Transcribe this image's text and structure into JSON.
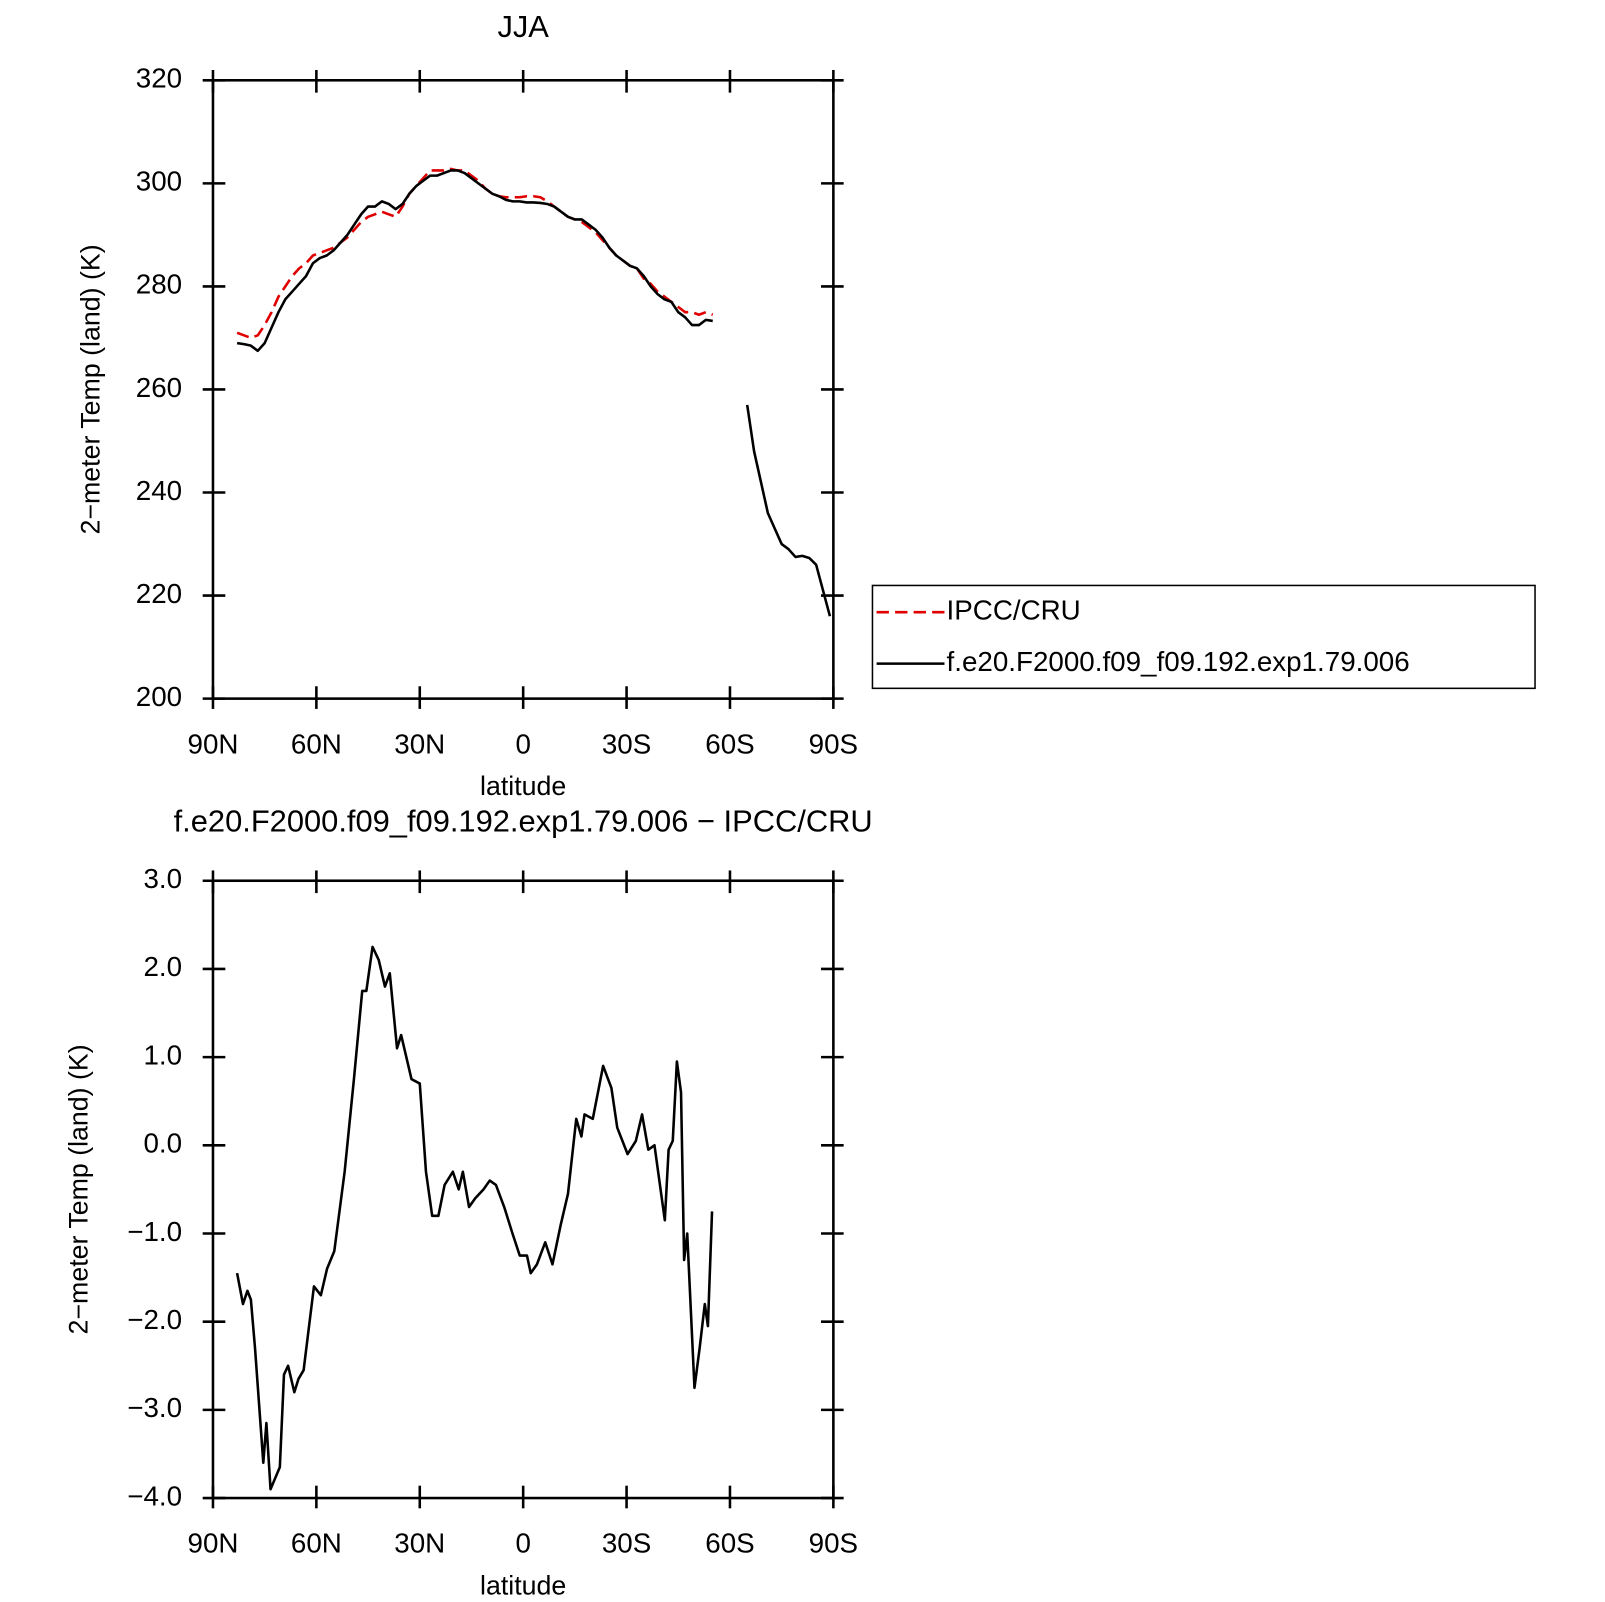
{
  "chart_data": [
    {
      "type": "line",
      "title": "JJA",
      "xlabel": "latitude",
      "ylabel": "2−meter Temp (land) (K)",
      "xlim": [
        90,
        -90
      ],
      "xticks": [
        {
          "value": 90,
          "label": "90N"
        },
        {
          "value": 60,
          "label": "60N"
        },
        {
          "value": 30,
          "label": "30N"
        },
        0,
        {
          "value": -30,
          "label": "30S"
        },
        {
          "value": -60,
          "label": "60S"
        },
        {
          "value": -90,
          "label": "90S"
        }
      ],
      "ylim": [
        200,
        320
      ],
      "yticks": [
        200,
        220,
        240,
        260,
        280,
        300,
        320
      ],
      "legend": "right",
      "x": [
        83,
        81,
        79,
        77,
        75,
        73,
        71,
        69,
        67,
        65,
        63,
        61,
        59,
        57,
        55,
        53,
        51,
        49,
        47,
        45,
        43,
        41,
        39,
        37,
        35,
        33,
        31,
        29,
        27,
        25,
        23,
        21,
        19,
        17,
        15,
        13,
        11,
        9,
        7,
        5,
        3,
        1,
        -1,
        -3,
        -5,
        -7,
        -9,
        -11,
        -13,
        -15,
        -17,
        -19,
        -21,
        -23,
        -25,
        -27,
        -29,
        -31,
        -33,
        -35,
        -37,
        -39,
        -41,
        -43,
        -45,
        -47,
        -49,
        -51,
        -53,
        -55,
        -57,
        -59,
        -61,
        -63,
        -65,
        -67,
        -69,
        -71,
        -73,
        -75,
        -77,
        -79,
        -81,
        -83,
        -85,
        -87,
        -89
      ],
      "series": [
        {
          "name": "IPCC/CRU",
          "color": "#e00000",
          "style": "dashed",
          "values": [
            271,
            270.5,
            270,
            270.5,
            272.5,
            275,
            278,
            280,
            282,
            283.5,
            284.5,
            286,
            286.5,
            287,
            287.5,
            288.5,
            289.5,
            291,
            292.5,
            293.5,
            294,
            294.5,
            294,
            293.5,
            295.5,
            298,
            299.5,
            301,
            302.5,
            302.5,
            302.5,
            302.8,
            302.5,
            302.5,
            301.5,
            300.5,
            299,
            298,
            297.5,
            297.3,
            297.3,
            297.3,
            297.5,
            297.5,
            297.3,
            296.5,
            295.5,
            294.5,
            293.5,
            293,
            292.5,
            291.5,
            290.5,
            289,
            287.5,
            286,
            285,
            284,
            283.5,
            281.5,
            280.5,
            279,
            278,
            277,
            276,
            275,
            275,
            274.5,
            275,
            274.5,
            null,
            null,
            null,
            null,
            null,
            null,
            null,
            null,
            null,
            null,
            null,
            null,
            null,
            null,
            null,
            null,
            null
          ]
        },
        {
          "name": "f.e20.F2000.f09_f09.192.exp1.79.006",
          "color": "#000000",
          "style": "solid",
          "values": [
            269,
            268.8,
            268.5,
            267.5,
            269,
            272,
            275,
            277.5,
            279,
            280.5,
            282,
            284.5,
            285.5,
            286,
            287,
            288.5,
            290,
            292,
            294,
            295.5,
            295.5,
            296.5,
            296,
            295,
            296,
            298,
            299.5,
            300.5,
            301.5,
            301.5,
            302,
            302.5,
            302.5,
            302,
            301,
            300,
            299,
            298,
            297.5,
            296.8,
            296.5,
            296.5,
            296.3,
            296.3,
            296.2,
            296,
            295.5,
            294.5,
            293.5,
            293,
            293,
            292,
            291,
            289.5,
            287.5,
            286,
            285,
            284,
            283.5,
            282,
            280,
            278.5,
            277.5,
            277,
            275,
            274,
            272.5,
            272.5,
            273.5,
            273.3,
            null,
            null,
            null,
            null,
            257,
            248,
            242,
            236,
            233,
            230,
            229,
            227.5,
            227.7,
            227.3,
            226,
            221,
            216
          ]
        }
      ]
    },
    {
      "type": "line",
      "title": "f.e20.F2000.f09_f09.192.exp1.79.006 − IPCC/CRU",
      "xlabel": "latitude",
      "ylabel": "2−meter Temp (land) (K)",
      "xlim": [
        90,
        -90
      ],
      "xticks": [
        {
          "value": 90,
          "label": "90N"
        },
        {
          "value": 60,
          "label": "60N"
        },
        {
          "value": 30,
          "label": "30N"
        },
        0,
        {
          "value": -30,
          "label": "30S"
        },
        {
          "value": -60,
          "label": "60S"
        },
        {
          "value": -90,
          "label": "90S"
        }
      ],
      "ylim": [
        -4,
        3
      ],
      "yticks": [
        {
          "value": -4,
          "label": "−4.0"
        },
        {
          "value": -3,
          "label": "−3.0"
        },
        {
          "value": -2,
          "label": "−2.0"
        },
        {
          "value": -1,
          "label": "−1.0"
        },
        {
          "value": 0,
          "label": "0.0"
        },
        {
          "value": 1,
          "label": "1.0"
        },
        {
          "value": 2,
          "label": "2.0"
        },
        {
          "value": 3,
          "label": "3.0"
        }
      ],
      "x": [
        83,
        81.3,
        80,
        79,
        77.8,
        75.4,
        74.5,
        73.3,
        70.6,
        69.4,
        68.2,
        66.4,
        65.2,
        63.7,
        60.7,
        58.7,
        56.9,
        54.8,
        51.8,
        49.1,
        46.7,
        45.5,
        43.7,
        41.9,
        40.1,
        38.7,
        36.6,
        35.4,
        34.2,
        32.4,
        30,
        28.2,
        26.4,
        24.6,
        22.8,
        20.4,
        18.7,
        17.5,
        15.7,
        13.9,
        11.5,
        9.7,
        7.9,
        5.5,
        3.1,
        1,
        -1.1,
        -2.2,
        -4,
        -6.4,
        -8.5,
        -10.9,
        -13,
        -15.4,
        -16.9,
        -17.8,
        -20.2,
        -23.2,
        -25.6,
        -27.3,
        -30.3,
        -32.7,
        -34.5,
        -36.3,
        -38.1,
        -41.1,
        -42.2,
        -43.4,
        -44.6,
        -45.8,
        -46.7,
        -47.6,
        -49.7,
        -51.2,
        -52.7,
        -53.6,
        -54.8
      ],
      "series": [
        {
          "color": "#000000",
          "style": "solid",
          "values": [
            -1.45,
            -1.8,
            -1.65,
            -1.75,
            -2.3,
            -3.6,
            -3.15,
            -3.9,
            -3.65,
            -2.6,
            -2.5,
            -2.8,
            -2.65,
            -2.55,
            -1.6,
            -1.7,
            -1.4,
            -1.2,
            -0.3,
            0.75,
            1.75,
            1.75,
            2.25,
            2.1,
            1.8,
            1.95,
            1.1,
            1.25,
            1.05,
            0.75,
            0.7,
            -0.3,
            -0.8,
            -0.8,
            -0.45,
            -0.3,
            -0.5,
            -0.3,
            -0.7,
            -0.6,
            -0.5,
            -0.4,
            -0.45,
            -0.7,
            -1.0,
            -1.25,
            -1.25,
            -1.45,
            -1.35,
            -1.1,
            -1.35,
            -0.9,
            -0.55,
            0.3,
            0.1,
            0.35,
            0.3,
            0.9,
            0.65,
            0.2,
            -0.1,
            0.05,
            0.35,
            -0.05,
            0.0,
            -0.85,
            -0.05,
            0.05,
            0.95,
            0.6,
            -1.3,
            -1.0,
            -2.75,
            -2.3,
            -1.8,
            -2.05,
            -0.75
          ]
        }
      ]
    }
  ]
}
